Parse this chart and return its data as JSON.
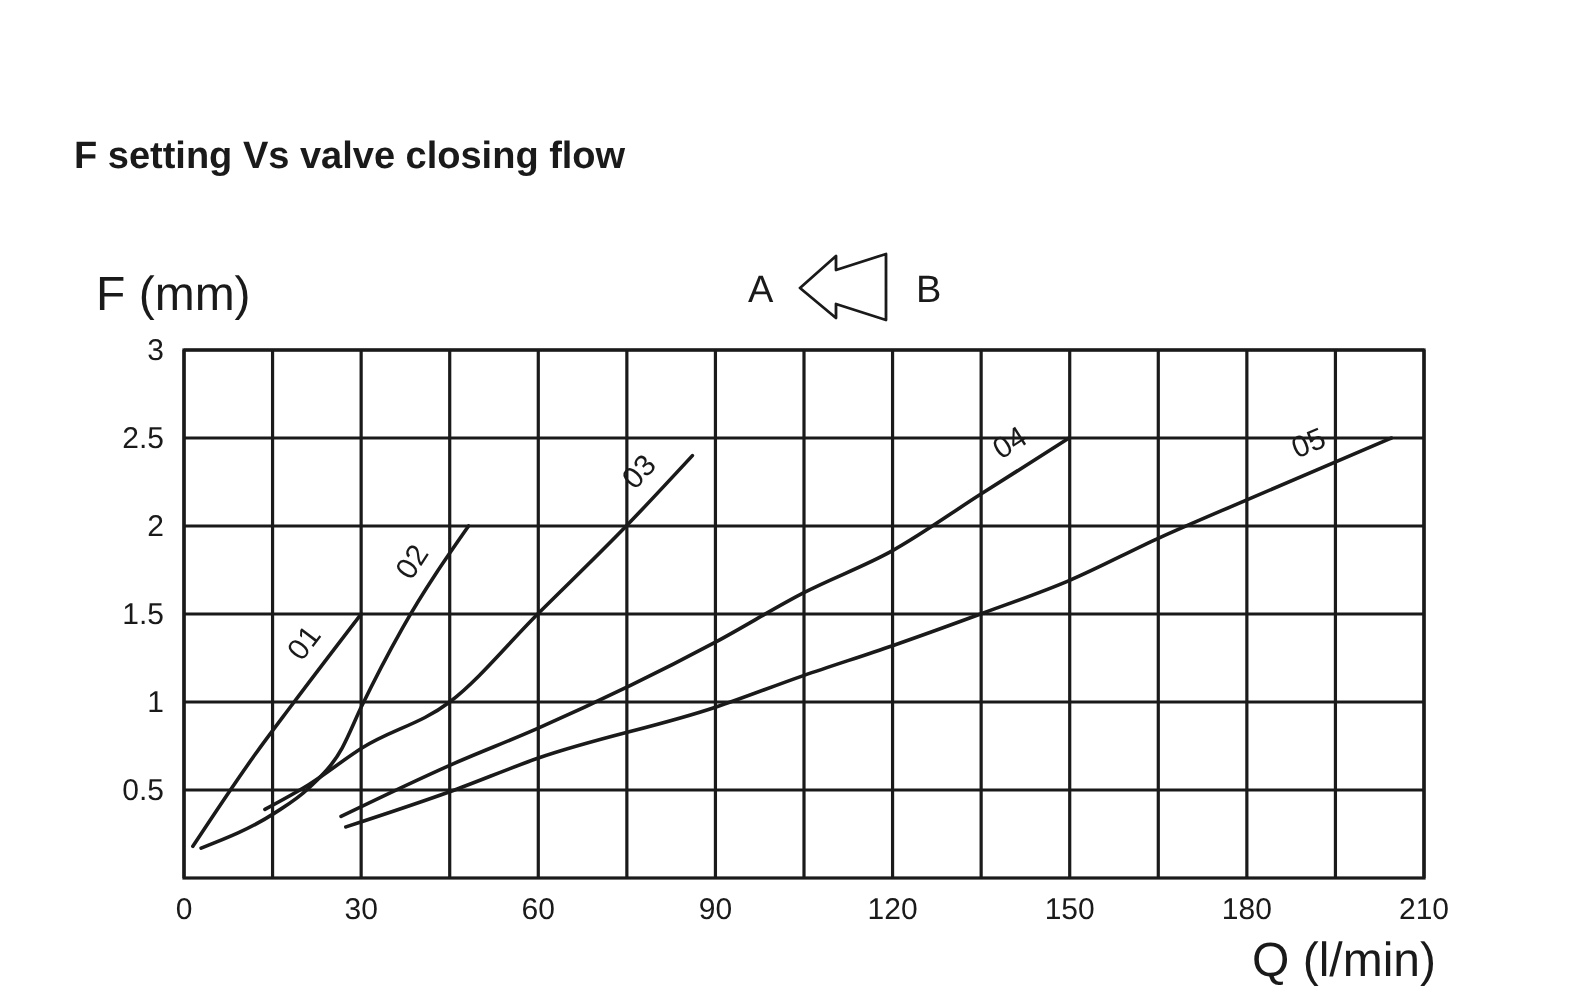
{
  "chart_data": {
    "type": "line",
    "title": "F setting Vs valve closing flow",
    "xlabel": "Q (l/min)",
    "ylabel": "F (mm)",
    "annotations": [
      "A",
      "B"
    ],
    "xlim": [
      0,
      210
    ],
    "xticks": [
      0,
      30,
      60,
      90,
      120,
      150,
      180,
      210
    ],
    "ylim": [
      0,
      3
    ],
    "yticks": [
      0.5,
      1,
      1.5,
      2,
      2.5,
      3
    ],
    "grid": true,
    "series": [
      {
        "name": "01",
        "color": "#1a1a1a",
        "x": [
          1.5,
          12,
          18.2,
          30
        ],
        "values": [
          0.18,
          0.7,
          0.98,
          1.5
        ]
      },
      {
        "name": "02",
        "color": "#1a1a1a",
        "x": [
          2.9,
          15.4,
          21.1,
          26.8,
          30,
          37,
          48.2
        ],
        "values": [
          0.17,
          0.37,
          0.51,
          0.74,
          0.97,
          1.42,
          2.0
        ]
      },
      {
        "name": "03",
        "color": "#1a1a1a",
        "x": [
          13.7,
          21.1,
          30.2,
          45,
          59.9,
          74.9,
          86.1
        ],
        "values": [
          0.39,
          0.53,
          0.74,
          1.0,
          1.5,
          2.0,
          2.4
        ]
      },
      {
        "name": "04",
        "color": "#1a1a1a",
        "x": [
          26.6,
          45,
          59.9,
          90,
          104.9,
          120,
          134.9,
          149.9
        ],
        "values": [
          0.35,
          0.64,
          0.85,
          1.34,
          1.62,
          1.86,
          2.18,
          2.5
        ]
      },
      {
        "name": "05",
        "color": "#1a1a1a",
        "x": [
          27.4,
          45,
          59.9,
          90,
          104.9,
          120,
          134.9,
          149.9,
          165,
          180.1,
          204.5
        ],
        "values": [
          0.29,
          0.49,
          0.68,
          0.97,
          1.15,
          1.32,
          1.5,
          1.69,
          1.93,
          2.15,
          2.5
        ]
      }
    ]
  }
}
